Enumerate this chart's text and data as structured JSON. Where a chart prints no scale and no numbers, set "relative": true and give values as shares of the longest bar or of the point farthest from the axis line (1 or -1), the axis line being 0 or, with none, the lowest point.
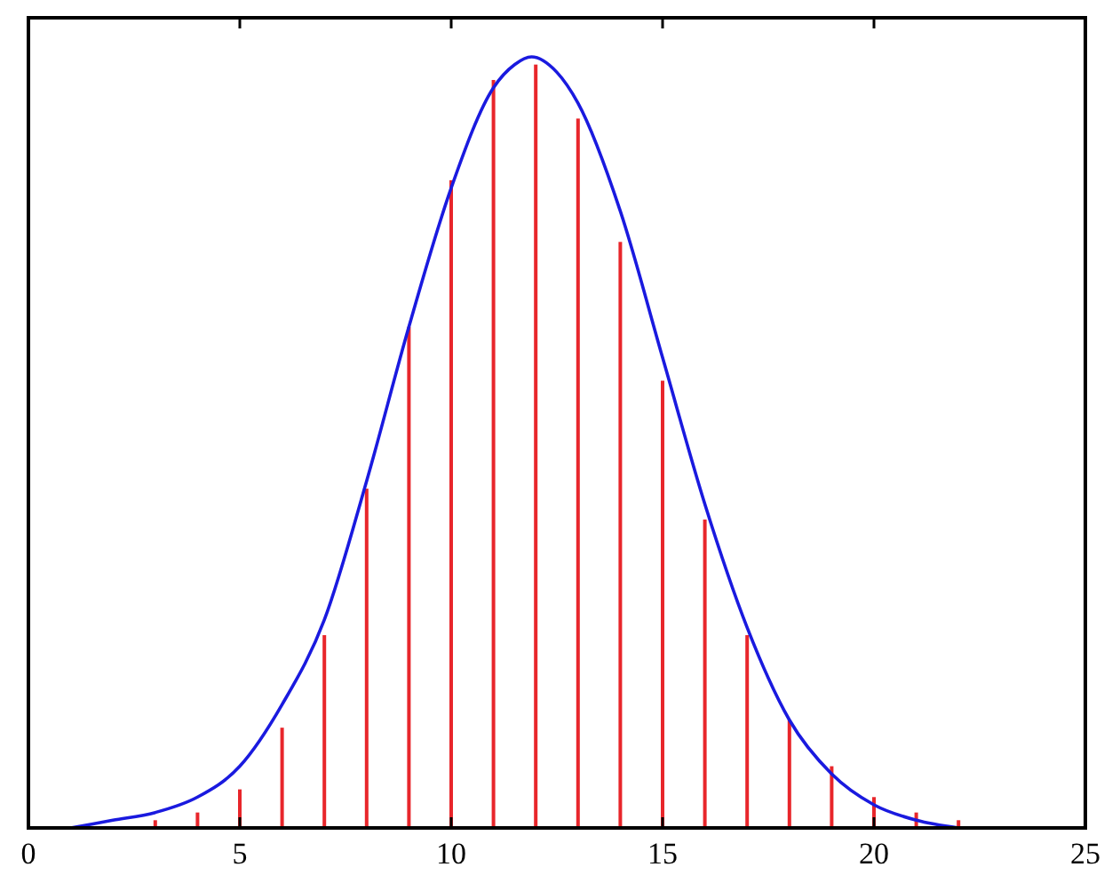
{
  "chart_data": {
    "type": "bar",
    "relative": true,
    "xlim": [
      0,
      25
    ],
    "xticks": [
      0,
      5,
      10,
      15,
      20,
      25
    ],
    "grid": false,
    "series": [
      {
        "color": "#e8262b",
        "x": [
          3,
          4,
          5,
          6,
          7,
          8,
          9,
          10,
          11,
          12,
          13,
          14,
          15,
          16,
          17,
          18,
          19,
          20,
          21,
          22
        ],
        "values": [
          0.01,
          0.02,
          0.05,
          0.13,
          0.25,
          0.44,
          0.65,
          0.84,
          0.97,
          0.99,
          0.92,
          0.76,
          0.58,
          0.4,
          0.25,
          0.14,
          0.08,
          0.04,
          0.02,
          0.01
        ]
      },
      {
        "type": "line",
        "color": "#1a1adf",
        "x": [
          1,
          2,
          3,
          4,
          5,
          6,
          7,
          8,
          9,
          10,
          11,
          11.5,
          11.9,
          12.5,
          13,
          14,
          15,
          16,
          17,
          18,
          19,
          20,
          21,
          22
        ],
        "values": [
          0,
          0.01,
          0.02,
          0.04,
          0.08,
          0.16,
          0.27,
          0.45,
          0.65,
          0.83,
          0.96,
          0.99,
          1,
          0.98,
          0.94,
          0.8,
          0.61,
          0.42,
          0.26,
          0.14,
          0.07,
          0.03,
          0.01,
          0
        ]
      }
    ]
  }
}
